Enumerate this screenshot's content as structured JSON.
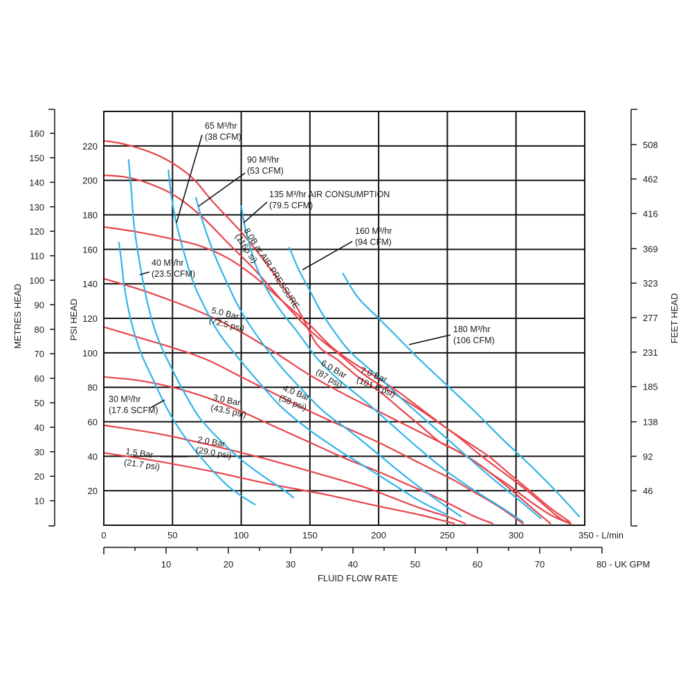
{
  "chart_data": {
    "type": "line",
    "colors": {
      "pressure": "#e8434a",
      "air": "#30b4e8"
    },
    "axes": {
      "x_lmin": {
        "label": "L/min",
        "ticks": [
          0,
          50,
          100,
          150,
          200,
          250,
          300,
          350
        ],
        "suffix": " - L/min",
        "range": [
          0,
          350
        ]
      },
      "x_gpm": {
        "label": "UK GPM",
        "ticks": [
          10,
          20,
          30,
          40,
          50,
          60,
          70,
          80
        ],
        "suffix": " - UK GPM",
        "range": [
          0,
          80
        ]
      },
      "xlabel": "FLUID FLOW RATE",
      "y_psi": {
        "label": "PSI HEAD",
        "ticks": [
          20,
          40,
          60,
          80,
          100,
          120,
          140,
          160,
          180,
          200,
          220
        ],
        "range": [
          0,
          240
        ]
      },
      "y_metres": {
        "label": "METRES HEAD",
        "ticks": [
          10,
          20,
          30,
          40,
          50,
          60,
          70,
          80,
          90,
          100,
          110,
          120,
          130,
          140,
          150,
          160
        ]
      },
      "y_feet": {
        "label": "FEET HEAD",
        "ticks": [
          46,
          92,
          138,
          185,
          231,
          277,
          323,
          369,
          416,
          462,
          508
        ]
      }
    },
    "series": [
      {
        "name": "8.0 Bar (116 psi)",
        "kind": "pressure",
        "points": [
          [
            0,
            223
          ],
          [
            15,
            221
          ],
          [
            35,
            216
          ],
          [
            50,
            210
          ],
          [
            65,
            201
          ],
          [
            80,
            187
          ],
          [
            100,
            170
          ],
          [
            120,
            150
          ],
          [
            140,
            127
          ],
          [
            155,
            105
          ],
          [
            170,
            96
          ],
          [
            185,
            86
          ],
          [
            200,
            78
          ],
          [
            215,
            68
          ],
          [
            230,
            58
          ],
          [
            245,
            48
          ],
          [
            255,
            44
          ],
          [
            268,
            38
          ],
          [
            282,
            30
          ],
          [
            295,
            23
          ],
          [
            310,
            14
          ],
          [
            325,
            6
          ],
          [
            339,
            1
          ]
        ]
      },
      {
        "name": "7.0 Bar (101.5 psi)",
        "kind": "pressure",
        "points": [
          [
            0,
            203
          ],
          [
            15,
            202
          ],
          [
            30,
            199
          ],
          [
            50,
            192
          ],
          [
            70,
            180
          ],
          [
            90,
            164
          ],
          [
            110,
            148
          ],
          [
            130,
            130
          ],
          [
            150,
            113
          ],
          [
            170,
            100
          ],
          [
            190,
            87
          ],
          [
            210,
            77
          ],
          [
            230,
            67
          ],
          [
            250,
            56
          ],
          [
            265,
            48
          ],
          [
            280,
            40
          ],
          [
            295,
            30
          ],
          [
            310,
            20
          ],
          [
            325,
            10
          ],
          [
            339,
            2
          ]
        ]
      },
      {
        "name": "6.0 Bar (87 psi)",
        "kind": "pressure",
        "points": [
          [
            0,
            173
          ],
          [
            25,
            170
          ],
          [
            50,
            166
          ],
          [
            70,
            162
          ],
          [
            90,
            155
          ],
          [
            110,
            144
          ],
          [
            130,
            130
          ],
          [
            150,
            116
          ],
          [
            165,
            104
          ],
          [
            180,
            95
          ],
          [
            200,
            85
          ],
          [
            215,
            77
          ],
          [
            230,
            68
          ],
          [
            245,
            59
          ],
          [
            260,
            50
          ],
          [
            275,
            40
          ],
          [
            290,
            31
          ],
          [
            305,
            22
          ],
          [
            320,
            12
          ],
          [
            332,
            4
          ],
          [
            340,
            1
          ]
        ]
      },
      {
        "name": "5.0 Bar (72.5 psi)",
        "kind": "pressure",
        "points": [
          [
            0,
            143
          ],
          [
            25,
            137
          ],
          [
            50,
            130
          ],
          [
            75,
            122
          ],
          [
            100,
            112
          ],
          [
            125,
            100
          ],
          [
            150,
            87
          ],
          [
            175,
            76
          ],
          [
            200,
            66
          ],
          [
            220,
            58
          ],
          [
            240,
            50
          ],
          [
            255,
            44
          ],
          [
            270,
            37
          ],
          [
            285,
            28
          ],
          [
            300,
            18
          ],
          [
            313,
            9
          ],
          [
            325,
            1
          ]
        ]
      },
      {
        "name": "4.0 Bar (58 psi)",
        "kind": "pressure",
        "points": [
          [
            0,
            115
          ],
          [
            25,
            109
          ],
          [
            50,
            103
          ],
          [
            75,
            96
          ],
          [
            100,
            86
          ],
          [
            125,
            76
          ],
          [
            150,
            66
          ],
          [
            175,
            57
          ],
          [
            200,
            48
          ],
          [
            220,
            40
          ],
          [
            240,
            32
          ],
          [
            255,
            26
          ],
          [
            270,
            19
          ],
          [
            285,
            12
          ],
          [
            298,
            5
          ],
          [
            305,
            1
          ]
        ]
      },
      {
        "name": "3.0 Bar (43.5 psi)",
        "kind": "pressure",
        "points": [
          [
            0,
            86
          ],
          [
            25,
            84
          ],
          [
            50,
            80
          ],
          [
            75,
            74
          ],
          [
            100,
            66
          ],
          [
            125,
            57
          ],
          [
            150,
            48
          ],
          [
            175,
            39
          ],
          [
            200,
            31
          ],
          [
            220,
            24
          ],
          [
            240,
            17
          ],
          [
            255,
            11
          ],
          [
            270,
            5
          ],
          [
            283,
            1
          ]
        ]
      },
      {
        "name": "2.0 Bar (29.0 psi)",
        "kind": "pressure",
        "points": [
          [
            0,
            58
          ],
          [
            40,
            53
          ],
          [
            80,
            46
          ],
          [
            120,
            38
          ],
          [
            160,
            29
          ],
          [
            190,
            22
          ],
          [
            210,
            16
          ],
          [
            230,
            10
          ],
          [
            250,
            5
          ],
          [
            263,
            1
          ]
        ]
      },
      {
        "name": "1.5 Bar (21.7 psi)",
        "kind": "pressure",
        "points": [
          [
            0,
            42
          ],
          [
            40,
            37
          ],
          [
            80,
            31
          ],
          [
            120,
            24
          ],
          [
            160,
            18
          ],
          [
            200,
            11
          ],
          [
            230,
            6
          ],
          [
            255,
            1
          ]
        ]
      },
      {
        "name": "30 M³/hr (17.6 SCFM)",
        "kind": "air",
        "points": [
          [
            11,
            164
          ],
          [
            13,
            152
          ],
          [
            15,
            138
          ],
          [
            20,
            118
          ],
          [
            27,
            100
          ],
          [
            35,
            86
          ],
          [
            42,
            74
          ],
          [
            50,
            62
          ],
          [
            60,
            50
          ],
          [
            70,
            40
          ],
          [
            80,
            31
          ],
          [
            90,
            23
          ],
          [
            100,
            17
          ],
          [
            110,
            12
          ]
        ]
      },
      {
        "name": "40 M³/hr (23.5 CFM)",
        "kind": "air",
        "points": [
          [
            18,
            212
          ],
          [
            20,
            195
          ],
          [
            22,
            174
          ],
          [
            27,
            148
          ],
          [
            33,
            125
          ],
          [
            40,
            107
          ],
          [
            50,
            90
          ],
          [
            60,
            75
          ],
          [
            70,
            62
          ],
          [
            85,
            49
          ],
          [
            100,
            38
          ],
          [
            115,
            29
          ],
          [
            130,
            21
          ],
          [
            138,
            16
          ]
        ]
      },
      {
        "name": "65 M³/hr (38 CFM)",
        "kind": "air",
        "points": [
          [
            47,
            206
          ],
          [
            49,
            192
          ],
          [
            52,
            178
          ],
          [
            57,
            162
          ],
          [
            65,
            141
          ],
          [
            75,
            124
          ],
          [
            85,
            110
          ],
          [
            100,
            95
          ],
          [
            115,
            81
          ],
          [
            130,
            68
          ],
          [
            150,
            55
          ],
          [
            170,
            44
          ],
          [
            190,
            34
          ],
          [
            210,
            24
          ],
          [
            230,
            14
          ],
          [
            250,
            6
          ]
        ]
      },
      {
        "name": "90 M³/hr (53 CFM)",
        "kind": "air",
        "points": [
          [
            67,
            190
          ],
          [
            72,
            176
          ],
          [
            80,
            158
          ],
          [
            90,
            140
          ],
          [
            100,
            124
          ],
          [
            115,
            106
          ],
          [
            130,
            91
          ],
          [
            145,
            78
          ],
          [
            160,
            66
          ],
          [
            180,
            54
          ],
          [
            200,
            41
          ],
          [
            220,
            28
          ],
          [
            240,
            16
          ],
          [
            260,
            5
          ]
        ]
      },
      {
        "name": "135 M³/hr AIR CONSUMPTION (79.5 CFM)",
        "kind": "air",
        "points": [
          [
            100,
            185
          ],
          [
            103,
            172
          ],
          [
            107,
            160
          ],
          [
            112,
            148
          ],
          [
            120,
            135
          ],
          [
            130,
            123
          ],
          [
            140,
            113
          ],
          [
            155,
            97
          ],
          [
            170,
            85
          ],
          [
            190,
            72
          ],
          [
            210,
            58
          ],
          [
            230,
            44
          ],
          [
            250,
            31
          ],
          [
            270,
            20
          ],
          [
            290,
            10
          ],
          [
            305,
            2
          ]
        ]
      },
      {
        "name": "160 M³/hr (94 CFM)",
        "kind": "air",
        "points": [
          [
            135,
            161
          ],
          [
            142,
            148
          ],
          [
            150,
            136
          ],
          [
            158,
            124
          ],
          [
            168,
            112
          ],
          [
            180,
            100
          ],
          [
            200,
            86
          ],
          [
            220,
            71
          ],
          [
            240,
            57
          ],
          [
            260,
            43
          ],
          [
            280,
            29
          ],
          [
            300,
            16
          ],
          [
            318,
            4
          ]
        ]
      },
      {
        "name": "180 M³/hr (106 CFM)",
        "kind": "air",
        "points": [
          [
            174,
            146
          ],
          [
            185,
            132
          ],
          [
            200,
            120
          ],
          [
            215,
            108
          ],
          [
            230,
            96
          ],
          [
            250,
            81
          ],
          [
            270,
            66
          ],
          [
            290,
            50
          ],
          [
            310,
            35
          ],
          [
            330,
            19
          ],
          [
            346,
            5
          ]
        ]
      }
    ],
    "annotations": [
      {
        "id": "a65",
        "l1": "65 M³/hr",
        "l2": "(38 CFM)"
      },
      {
        "id": "a90",
        "l1": "90 M³/hr",
        "l2": "(53 CFM)"
      },
      {
        "id": "a135",
        "l1": "135 M³/hr AIR CONSUMPTION",
        "l2": "(79.5 CFM)"
      },
      {
        "id": "a160",
        "l1": "160 M³/hr",
        "l2": "(94 CFM)"
      },
      {
        "id": "a40",
        "l1": "40 M³/hr",
        "l2": "(23.5 CFM)"
      },
      {
        "id": "a180",
        "l1": "180 M³/hr",
        "l2": "(106 CFM)"
      },
      {
        "id": "a30",
        "l1": "30 M³/hr",
        "l2": "(17.6 SCFM)"
      },
      {
        "id": "p8",
        "l1": "8.0B ar AIR PRESSURE",
        "l2": "(116p si)"
      },
      {
        "id": "p7",
        "l1": "7.0 Bar",
        "l2": "(101.5 psi)"
      },
      {
        "id": "p6",
        "l1": "6.0 Bar",
        "l2": "(87 psi)"
      },
      {
        "id": "p5",
        "l1": "5.0 Bar",
        "l2": "(72.5 psi)"
      },
      {
        "id": "p4",
        "l1": "4.0 Bar",
        "l2": "(58 psi)"
      },
      {
        "id": "p3",
        "l1": "3.0 Bar",
        "l2": "(43.5 psi)"
      },
      {
        "id": "p2",
        "l1": "2.0 Bar",
        "l2": "(29.0 psi)"
      },
      {
        "id": "p15",
        "l1": "1.5 Bar",
        "l2": "(21.7 psi)"
      }
    ]
  }
}
